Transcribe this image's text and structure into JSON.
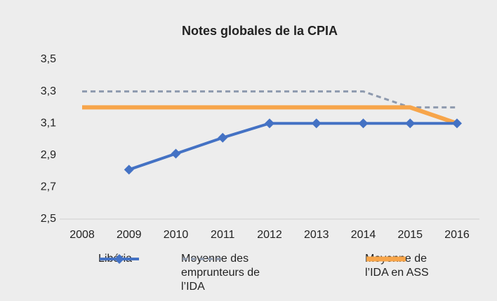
{
  "chart_data": {
    "type": "line",
    "title": "Notes globales de la CPIA",
    "categories": [
      "2008",
      "2009",
      "2010",
      "2011",
      "2012",
      "2013",
      "2014",
      "2015",
      "2016"
    ],
    "series": [
      {
        "name": "Libéria",
        "color": "#4472c4",
        "values": [
          null,
          2.81,
          2.91,
          3.01,
          3.1,
          3.1,
          3.1,
          3.1,
          3.1
        ],
        "marker": "diamond"
      },
      {
        "name": "Moyenne des emprunteurs de l’IDA",
        "color": "#8e9aae",
        "values": [
          3.3,
          3.3,
          3.3,
          3.3,
          3.3,
          3.3,
          3.3,
          3.2,
          3.2
        ],
        "dash": true
      },
      {
        "name": "Moyenne de l’IDA en ASS",
        "color": "#f7a54a",
        "values": [
          3.2,
          3.2,
          3.2,
          3.2,
          3.2,
          3.2,
          3.2,
          3.2,
          3.1
        ]
      }
    ],
    "ylim": [
      2.5,
      3.5
    ],
    "yticks": [
      {
        "value": 2.5,
        "label": "2,5"
      },
      {
        "value": 2.7,
        "label": "2,7"
      },
      {
        "value": 2.9,
        "label": "2,9"
      },
      {
        "value": 3.1,
        "label": "3,1"
      },
      {
        "value": 3.3,
        "label": "3,3"
      },
      {
        "value": 3.5,
        "label": "3,5"
      }
    ],
    "grid": false,
    "legend": "bottom"
  }
}
